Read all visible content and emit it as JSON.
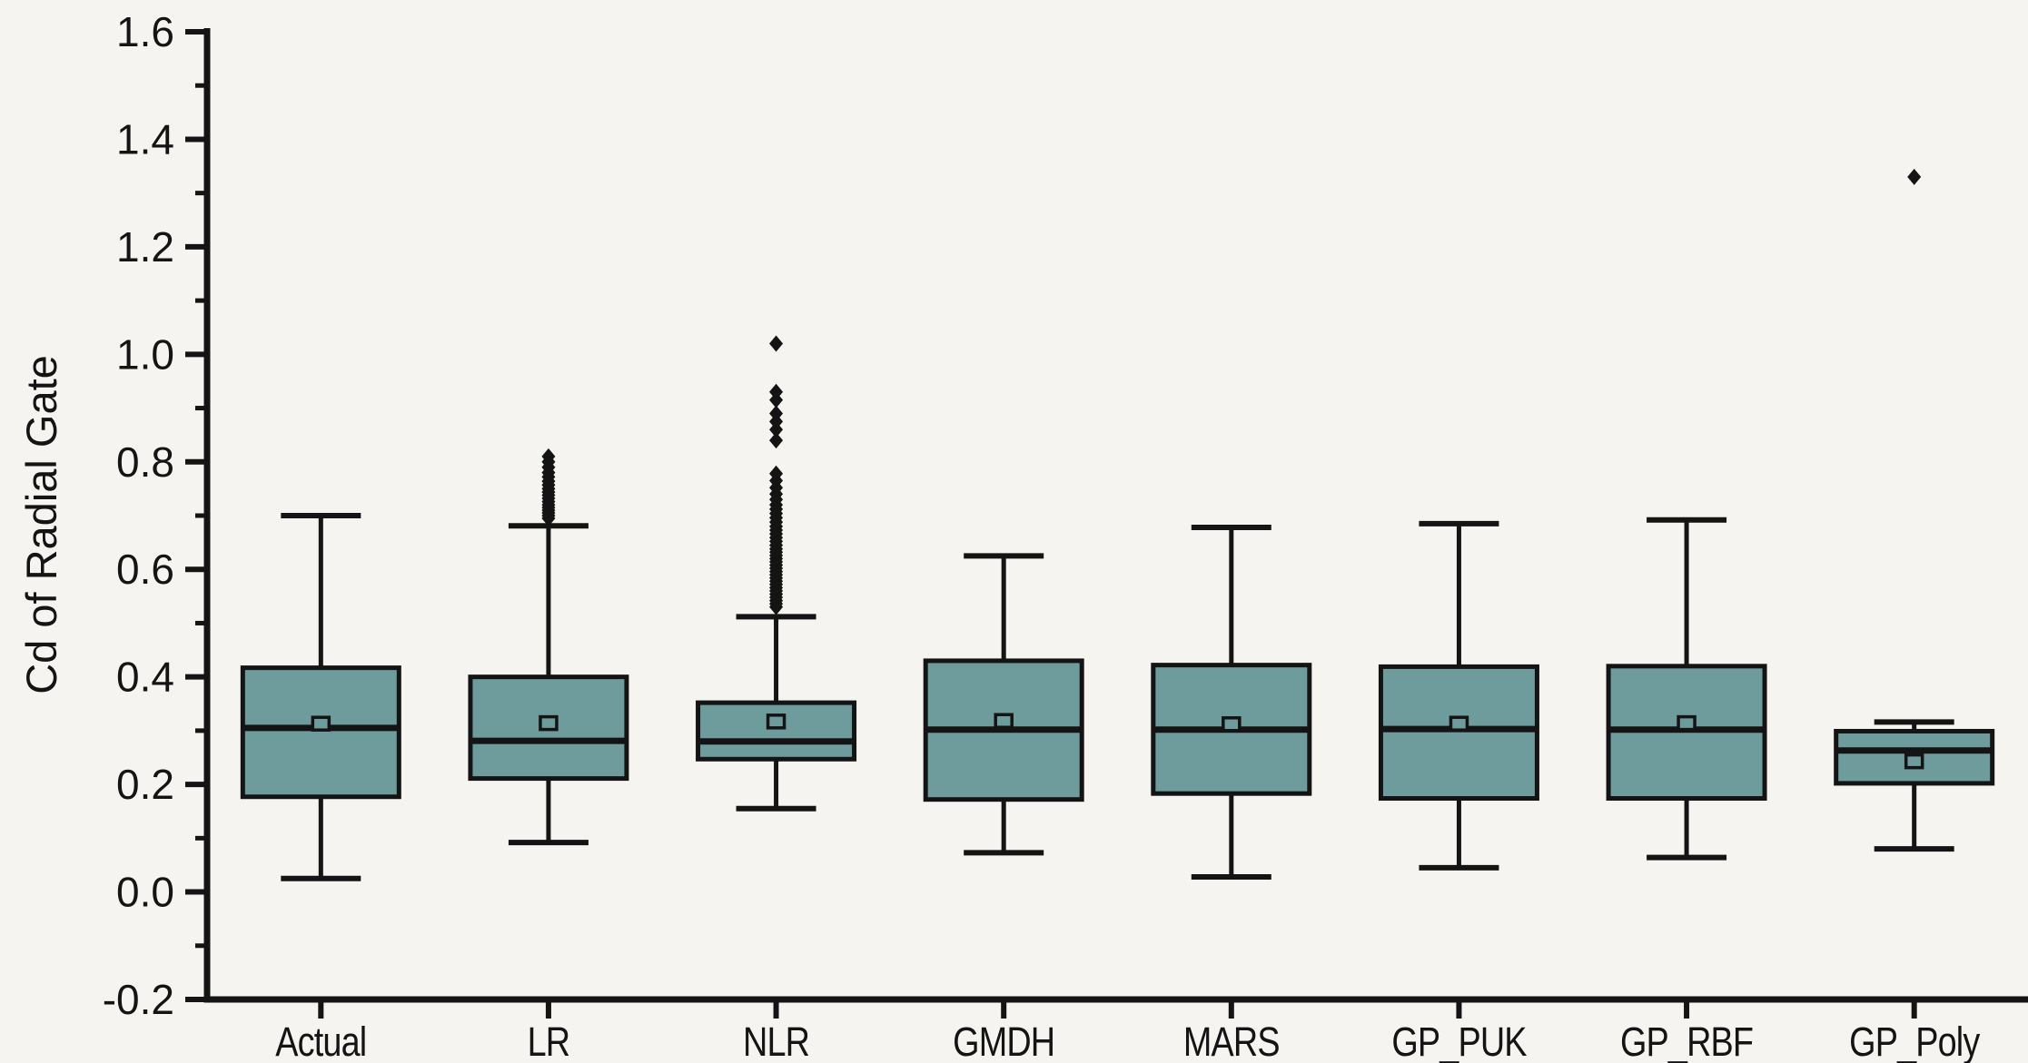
{
  "figure": {
    "background": "#f5f4f1"
  },
  "chart_data": {
    "type": "boxplot",
    "title": "",
    "xlabel": "",
    "ylabel": "Cd of Radial Gate",
    "ylim": [
      -0.2,
      1.6
    ],
    "grid": false,
    "legend": "none",
    "ytick_values": [
      -0.2,
      0.0,
      0.2,
      0.4,
      0.6,
      0.8,
      1.0,
      1.2,
      1.4,
      1.6
    ],
    "ytick_labels": [
      "-0.2",
      "0.0",
      "0.2",
      "0.4",
      "0.6",
      "0.8",
      "1.0",
      "1.2",
      "1.4",
      "1.6"
    ],
    "ytick_minor_values": [
      -0.1,
      0.1,
      0.3,
      0.5,
      0.7,
      0.9,
      1.1,
      1.3,
      1.5
    ],
    "categories": [
      "Actual",
      "LR",
      "NLR",
      "GMDH",
      "MARS",
      "GP_PUK",
      "GP_RBF",
      "GP_Poly"
    ],
    "box_fill": "#6e9b9b",
    "line_color": "#141414",
    "mean_marker": "open-square",
    "outlier_marker": "diamond",
    "series": [
      {
        "name": "Actual",
        "whisker_low": 0.025,
        "q1": 0.177,
        "median": 0.305,
        "mean": 0.313,
        "q3": 0.417,
        "whisker_high": 0.7,
        "outliers": []
      },
      {
        "name": "LR",
        "whisker_low": 0.092,
        "q1": 0.211,
        "median": 0.281,
        "mean": 0.314,
        "q3": 0.4,
        "whisker_high": 0.681,
        "outliers": [
          0.695,
          0.7,
          0.705,
          0.71,
          0.715,
          0.72,
          0.726,
          0.732,
          0.738,
          0.744,
          0.75,
          0.757,
          0.764,
          0.772,
          0.78,
          0.79,
          0.8,
          0.81
        ]
      },
      {
        "name": "NLR",
        "whisker_low": 0.155,
        "q1": 0.247,
        "median": 0.28,
        "mean": 0.317,
        "q3": 0.352,
        "whisker_high": 0.512,
        "outliers": [
          0.53,
          0.536,
          0.542,
          0.548,
          0.554,
          0.56,
          0.566,
          0.572,
          0.578,
          0.584,
          0.59,
          0.596,
          0.602,
          0.608,
          0.614,
          0.62,
          0.626,
          0.632,
          0.638,
          0.645,
          0.652,
          0.659,
          0.666,
          0.673,
          0.68,
          0.688,
          0.696,
          0.704,
          0.712,
          0.72,
          0.73,
          0.74,
          0.752,
          0.765,
          0.778,
          0.84,
          0.86,
          0.875,
          0.89,
          0.915,
          0.93,
          1.02
        ]
      },
      {
        "name": "GMDH",
        "whisker_low": 0.073,
        "q1": 0.172,
        "median": 0.302,
        "mean": 0.318,
        "q3": 0.43,
        "whisker_high": 0.625,
        "outliers": []
      },
      {
        "name": "MARS",
        "whisker_low": 0.028,
        "q1": 0.183,
        "median": 0.302,
        "mean": 0.312,
        "q3": 0.422,
        "whisker_high": 0.678,
        "outliers": []
      },
      {
        "name": "GP_PUK",
        "whisker_low": 0.045,
        "q1": 0.174,
        "median": 0.303,
        "mean": 0.313,
        "q3": 0.419,
        "whisker_high": 0.685,
        "outliers": []
      },
      {
        "name": "GP_RBF",
        "whisker_low": 0.064,
        "q1": 0.174,
        "median": 0.302,
        "mean": 0.314,
        "q3": 0.42,
        "whisker_high": 0.692,
        "outliers": []
      },
      {
        "name": "GP_Poly",
        "whisker_low": 0.08,
        "q1": 0.202,
        "median": 0.263,
        "mean": 0.243,
        "q3": 0.299,
        "whisker_high": 0.316,
        "outliers": [
          1.33
        ]
      }
    ]
  }
}
